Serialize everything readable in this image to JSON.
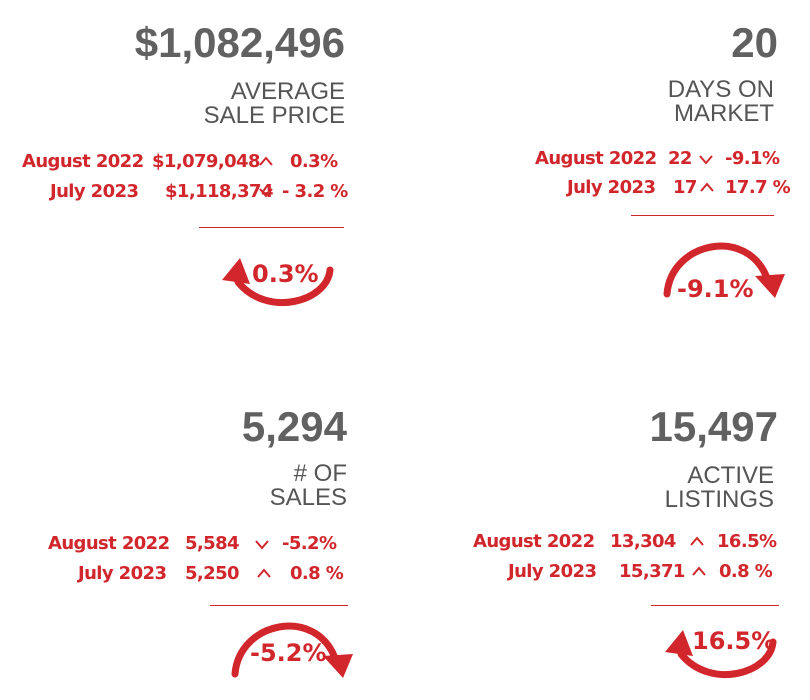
{
  "colors": {
    "accent": "#d1262b",
    "value": "#616161",
    "label": "#555555"
  },
  "panels": [
    {
      "value": "$1,082,496",
      "label": [
        "AVERAGE",
        "SALE PRICE"
      ],
      "rows": [
        {
          "period": "August 2022",
          "amount": "$1,079,048",
          "trend_icon": "chevron-up-icon",
          "chevron": "^",
          "change": "0.3%"
        },
        {
          "period": "July 2023",
          "amount": "$1,118,374",
          "trend_icon": "chevron-down-icon",
          "chevron": "v",
          "change": "- 3.2 %"
        }
      ],
      "yoy_change": "0.3%",
      "yoy_arrow": "counterclockwise-up-arrow-icon"
    },
    {
      "value": "20",
      "label": [
        "DAYS ON",
        "MARKET"
      ],
      "rows": [
        {
          "period": "August 2022",
          "amount": "22",
          "trend_icon": "chevron-down-icon",
          "chevron": "v",
          "change": "-9.1%"
        },
        {
          "period": "July 2023",
          "amount": "17",
          "trend_icon": "chevron-up-icon",
          "chevron": "^",
          "change": "17.7 %"
        }
      ],
      "yoy_change": "-9.1%",
      "yoy_arrow": "clockwise-down-arrow-icon"
    },
    {
      "value": "5,294",
      "label": [
        "# OF",
        "SALES"
      ],
      "rows": [
        {
          "period": "August 2022",
          "amount": "5,584",
          "trend_icon": "chevron-down-icon",
          "chevron": "v",
          "change": "-5.2%"
        },
        {
          "period": "July 2023",
          "amount": "5,250",
          "trend_icon": "chevron-up-icon",
          "chevron": "^",
          "change": "0.8 %"
        }
      ],
      "yoy_change": "-5.2%",
      "yoy_arrow": "clockwise-down-arrow-icon"
    },
    {
      "value": "15,497",
      "label": [
        "ACTIVE",
        "LISTINGS"
      ],
      "rows": [
        {
          "period": "August 2022",
          "amount": "13,304",
          "trend_icon": "chevron-up-icon",
          "chevron": "^",
          "change": "16.5%"
        },
        {
          "period": "July 2023",
          "amount": "15,371",
          "trend_icon": "chevron-up-icon",
          "chevron": "^",
          "change": "0.8 %"
        }
      ],
      "yoy_change": "16.5%",
      "yoy_arrow": "counterclockwise-up-arrow-icon"
    }
  ]
}
